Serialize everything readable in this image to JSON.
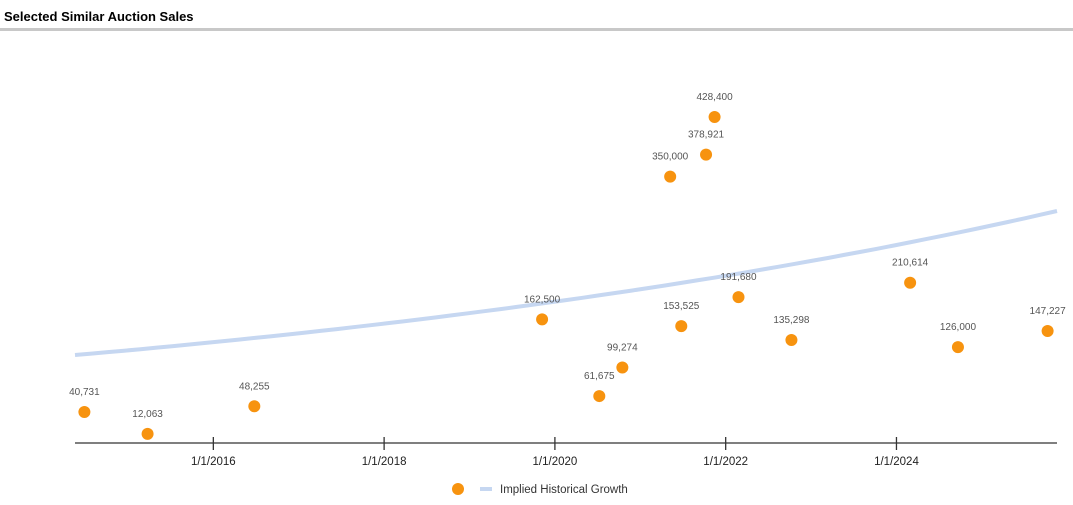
{
  "header": {
    "title": "Selected Similar Auction Sales"
  },
  "colors": {
    "points": "#f7930f",
    "trend": "#c6d7f1",
    "axis": "#333333"
  },
  "chart_data": {
    "type": "scatter",
    "title": "Selected Similar Auction Sales",
    "xlabel": "",
    "ylabel": "",
    "xlim": [
      2014.38,
      2025.88
    ],
    "ylim": [
      0,
      435000
    ],
    "x_ticks": [
      {
        "value": 2016,
        "label": "1/1/2016"
      },
      {
        "value": 2018,
        "label": "1/1/2018"
      },
      {
        "value": 2020,
        "label": "1/1/2020"
      },
      {
        "value": 2022,
        "label": "1/1/2022"
      },
      {
        "value": 2024,
        "label": "1/1/2024"
      }
    ],
    "grid": false,
    "points": [
      {
        "x": 2014.49,
        "y": 40731,
        "label": "40,731"
      },
      {
        "x": 2015.23,
        "y": 12063,
        "label": "12,063"
      },
      {
        "x": 2016.48,
        "y": 48255,
        "label": "48,255"
      },
      {
        "x": 2019.85,
        "y": 162500,
        "label": "162,500"
      },
      {
        "x": 2020.52,
        "y": 61675,
        "label": "61,675"
      },
      {
        "x": 2020.79,
        "y": 99274,
        "label": "99,274"
      },
      {
        "x": 2021.35,
        "y": 350000,
        "label": "350,000"
      },
      {
        "x": 2021.48,
        "y": 153525,
        "label": "153,525"
      },
      {
        "x": 2021.77,
        "y": 378921,
        "label": "378,921"
      },
      {
        "x": 2021.87,
        "y": 428400,
        "label": "428,400"
      },
      {
        "x": 2022.15,
        "y": 191680,
        "label": "191,680"
      },
      {
        "x": 2022.77,
        "y": 135298,
        "label": "135,298"
      },
      {
        "x": 2024.16,
        "y": 210614,
        "label": "210,614"
      },
      {
        "x": 2024.72,
        "y": 126000,
        "label": "126,000"
      },
      {
        "x": 2025.77,
        "y": 147227,
        "label": "147,227"
      }
    ],
    "trend": {
      "name": "Implied Historical Growth",
      "type": "exponential",
      "start": {
        "x": 2014.38,
        "y": 115600
      },
      "end": {
        "x": 2025.88,
        "y": 304900
      }
    },
    "legend": {
      "placement": "bottom",
      "entries": [
        "",
        "Implied Historical Growth"
      ]
    }
  }
}
